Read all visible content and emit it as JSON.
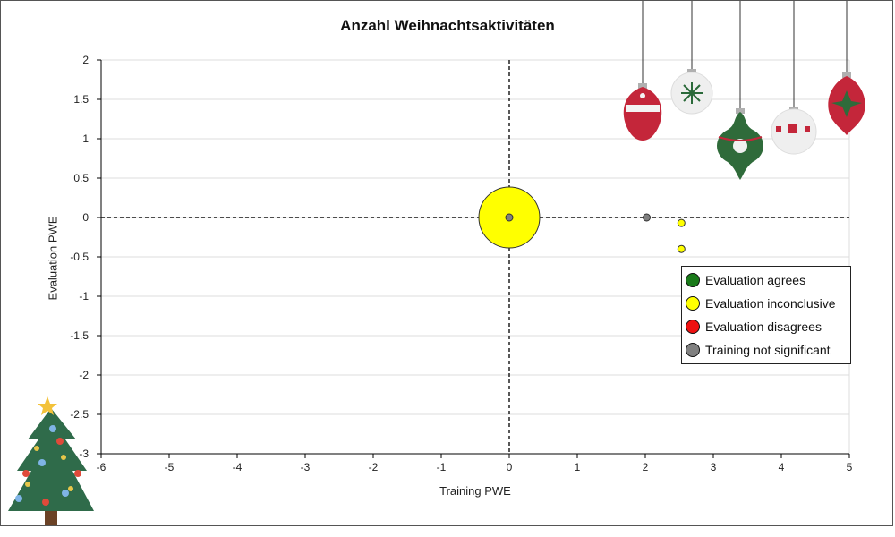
{
  "chart_data": {
    "type": "scatter",
    "title": "Anzahl Weihnachtsaktivitäten",
    "xlabel": "Training PWE",
    "ylabel": "Evaluation PWE",
    "xlim": [
      -6,
      5
    ],
    "ylim": [
      -3,
      2
    ],
    "x_ticks": [
      "-6",
      "-5",
      "-4",
      "-3",
      "-2",
      "-1",
      "0",
      "1",
      "2",
      "3",
      "4",
      "5"
    ],
    "y_ticks": [
      "2",
      "1.5",
      "1",
      "0.5",
      "0",
      "-0.5",
      "-1",
      "-1.5",
      "-2",
      "-2.5",
      "-3"
    ],
    "grid": "horizontal",
    "legend_position": "right",
    "legend": [
      {
        "label": "Evaluation agrees",
        "color": "#1a7a1a"
      },
      {
        "label": "Evaluation inconclusive",
        "color": "#ffff00"
      },
      {
        "label": "Evaluation disagrees",
        "color": "#ee1111"
      },
      {
        "label": "Training not significant",
        "color": "#808080"
      }
    ],
    "points": [
      {
        "x": 0.0,
        "y": 0.0,
        "size": "large",
        "category": "Evaluation inconclusive",
        "color": "#ffff00"
      },
      {
        "x": 0.0,
        "y": 0.0,
        "size": "small",
        "category": "Training not significant",
        "color": "#808080"
      },
      {
        "x": 2.02,
        "y": 0.0,
        "size": "small",
        "category": "Training not significant",
        "color": "#808080"
      },
      {
        "x": 2.53,
        "y": -0.07,
        "size": "small",
        "category": "Evaluation inconclusive",
        "color": "#ffff00"
      },
      {
        "x": 2.53,
        "y": -0.4,
        "size": "small",
        "category": "Evaluation inconclusive",
        "color": "#ffff00"
      }
    ]
  },
  "decorations": {
    "ornaments": [
      "ornament-red-icon",
      "ornament-white-snowflake-icon",
      "ornament-green-icon",
      "ornament-white-pattern-icon",
      "ornament-red-flower-icon"
    ],
    "tree": "christmas-tree-icon"
  }
}
